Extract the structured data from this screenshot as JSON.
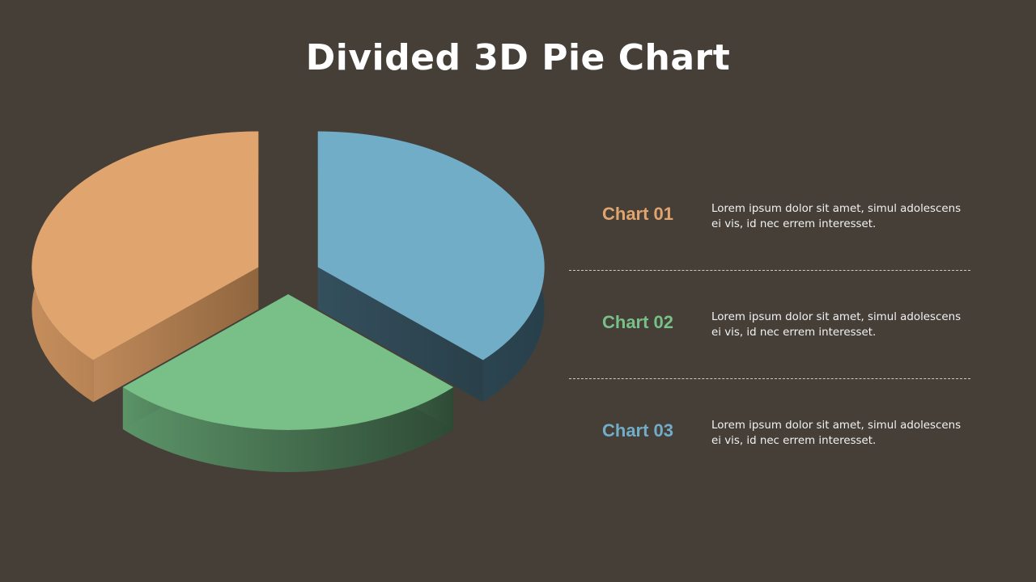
{
  "title": "Divided 3D Pie Chart",
  "colors": {
    "background": "#453f38",
    "divider": "#cfcac2"
  },
  "chart_data": {
    "type": "pie",
    "title": "Divided 3D Pie Chart",
    "style": "3d-exploded",
    "slices": [
      {
        "label": "Chart 01",
        "value": 37,
        "color": "#e0a46e"
      },
      {
        "label": "Chart 02",
        "value": 26,
        "color": "#78c088"
      },
      {
        "label": "Chart 03",
        "value": 37,
        "color": "#72adc8"
      }
    ]
  },
  "legend": [
    {
      "label": "Chart 01",
      "color": "#e0a46e",
      "text": "Lorem ipsum dolor sit amet, simul adolescens ei vis, id nec errem interesset."
    },
    {
      "label": "Chart 02",
      "color": "#78c088",
      "text": "Lorem ipsum dolor sit amet, simul adolescens ei vis, id nec errem interesset."
    },
    {
      "label": "Chart 03",
      "color": "#72adc8",
      "text": "Lorem ipsum dolor sit amet, simul adolescens ei vis, id nec errem interesset."
    }
  ]
}
